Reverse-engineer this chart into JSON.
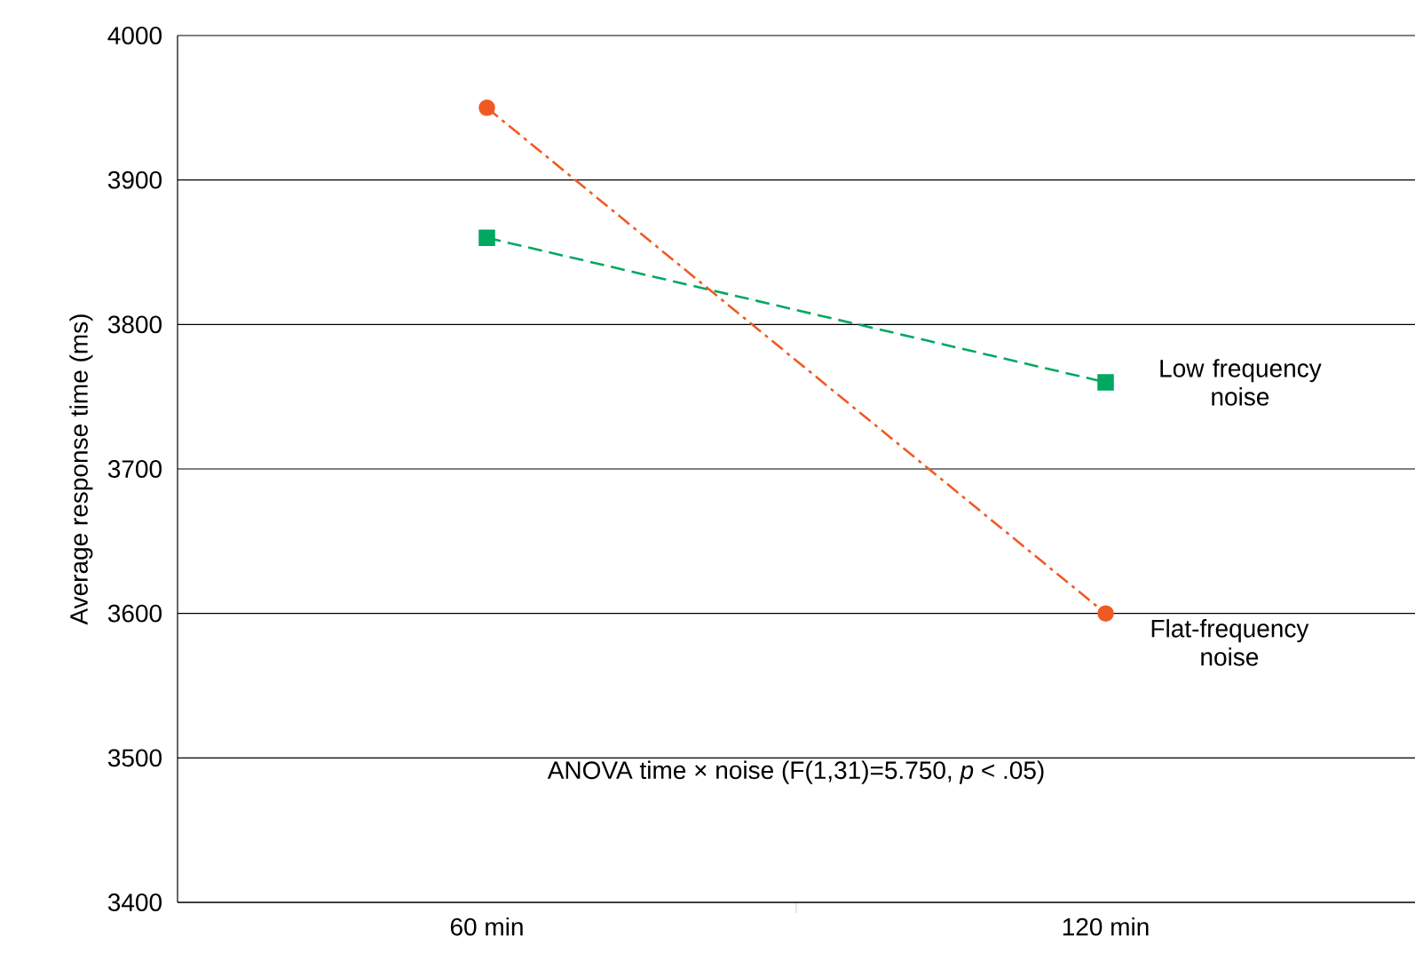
{
  "chart_data": {
    "type": "line",
    "ylabel": "Average response time (ms)",
    "categories": [
      "60 min",
      "120 min"
    ],
    "series": [
      {
        "name": "Low frequency noise",
        "color": "#00a862",
        "values": [
          3860,
          3760
        ],
        "marker": "square",
        "line_style": "dashed"
      },
      {
        "name": "Flat-frequency noise",
        "color": "#f05a22",
        "values": [
          3950,
          3600
        ],
        "marker": "circle",
        "line_style": "dashdot"
      }
    ],
    "ylim": [
      3400,
      4000
    ],
    "yticks": [
      3400,
      3500,
      3600,
      3700,
      3800,
      3900,
      4000
    ],
    "grid": "y",
    "legend": false,
    "annotations": [
      "ANOVA time × noise (F(1,31)=5.750, *p* < .05)"
    ]
  }
}
